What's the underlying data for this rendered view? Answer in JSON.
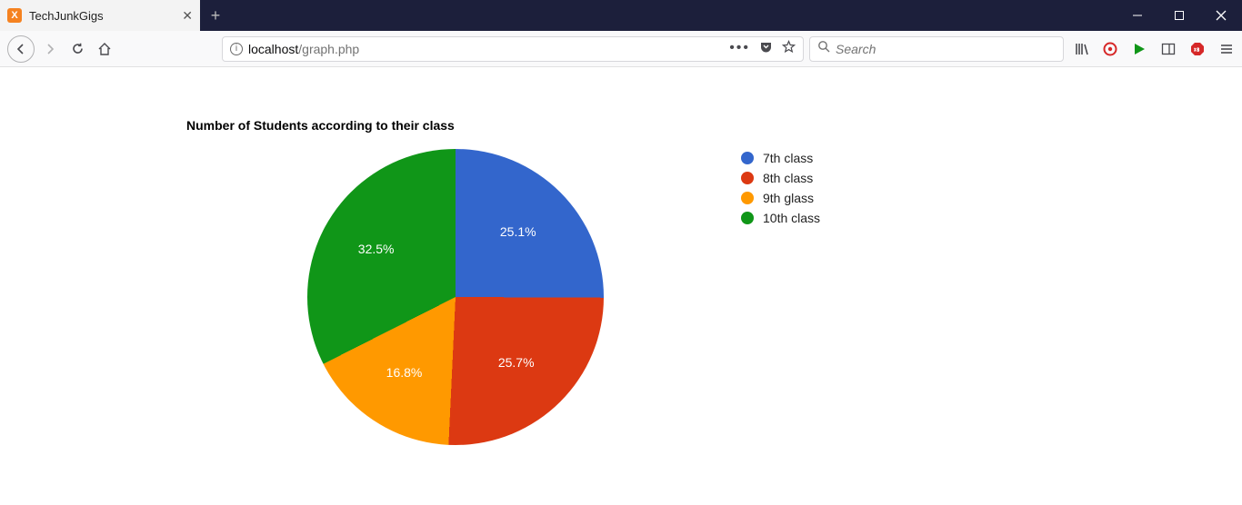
{
  "window": {
    "tab_title": "TechJunkGigs",
    "tab_favicon_letter": "X"
  },
  "toolbar": {
    "url_host": "localhost",
    "url_path": "/graph.php",
    "search_placeholder": "Search"
  },
  "chart": {
    "type": "pie",
    "title": "Number of Students according to their class",
    "background_color": "#ffffff",
    "title_fontsize": 14,
    "label_color": "#ffffff",
    "label_fontsize": 14,
    "slices": [
      {
        "label": "7th class",
        "value": 25.1,
        "color": "#3366cc",
        "display": "25.1%"
      },
      {
        "label": "8th class",
        "value": 25.7,
        "color": "#dc3912",
        "display": "25.7%"
      },
      {
        "label": "9th glass",
        "value": 16.8,
        "color": "#ff9900",
        "display": "16.8%"
      },
      {
        "label": "10th class",
        "value": 32.5,
        "color": "#109618",
        "display": "32.5%"
      }
    ]
  },
  "legend": {
    "items": [
      {
        "label": "7th class",
        "color": "#3366cc"
      },
      {
        "label": "8th class",
        "color": "#dc3912"
      },
      {
        "label": "9th glass",
        "color": "#ff9900"
      },
      {
        "label": "10th class",
        "color": "#109618"
      }
    ]
  }
}
